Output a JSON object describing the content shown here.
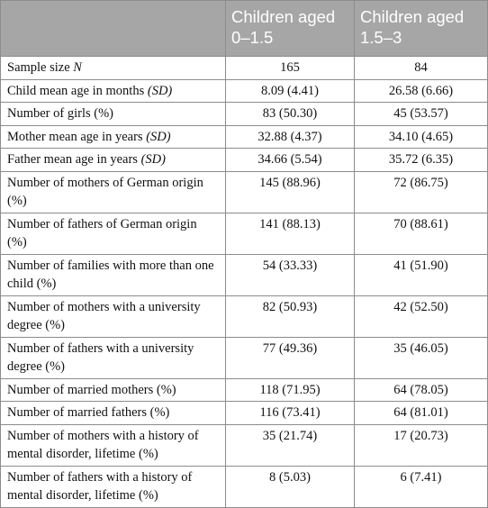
{
  "table": {
    "header": [
      "Children aged 0–1.5",
      "Children aged 1.5–3"
    ],
    "rows": [
      {
        "label": "Sample size ",
        "label_italic": "N",
        "values": [
          "165",
          "84"
        ]
      },
      {
        "label": "Child mean age in months ",
        "label_italic": "(SD)",
        "values": [
          "8.09 (4.41)",
          "26.58 (6.66)"
        ]
      },
      {
        "label": "Number of girls (%)",
        "values": [
          "83 (50.30)",
          "45 (53.57)"
        ]
      },
      {
        "label": "Mother mean age in years ",
        "label_italic": "(SD)",
        "values": [
          "32.88 (4.37)",
          "34.10 (4.65)"
        ]
      },
      {
        "label": "Father mean age in years ",
        "label_italic": "(SD)",
        "values": [
          "34.66 (5.54)",
          "35.72 (6.35)"
        ]
      },
      {
        "label": "Number of mothers of German origin (%)",
        "values": [
          "145 (88.96)",
          "72 (86.75)"
        ]
      },
      {
        "label": "Number of fathers of German origin (%)",
        "values": [
          "141 (88.13)",
          "70 (88.61)"
        ]
      },
      {
        "label": "Number of families with more than one child (%)",
        "values": [
          "54 (33.33)",
          "41 (51.90)"
        ]
      },
      {
        "label": "Number of mothers with a university degree (%)",
        "values": [
          "82 (50.93)",
          "42 (52.50)"
        ]
      },
      {
        "label": "Number of fathers with a university degree (%)",
        "values": [
          "77 (49.36)",
          "35 (46.05)"
        ]
      },
      {
        "label": "Number of married mothers (%)",
        "values": [
          "118 (71.95)",
          "64 (78.05)"
        ]
      },
      {
        "label": "Number of married fathers (%)",
        "values": [
          "116 (73.41)",
          "64 (81.01)"
        ]
      },
      {
        "label": "Number of mothers with a history of mental disorder, lifetime (%)",
        "values": [
          "35 (21.74)",
          "17 (20.73)"
        ]
      },
      {
        "label": "Number of fathers with a history of mental disorder, lifetime (%)",
        "values": [
          "8 (5.03)",
          "6 (7.41)"
        ]
      }
    ]
  }
}
